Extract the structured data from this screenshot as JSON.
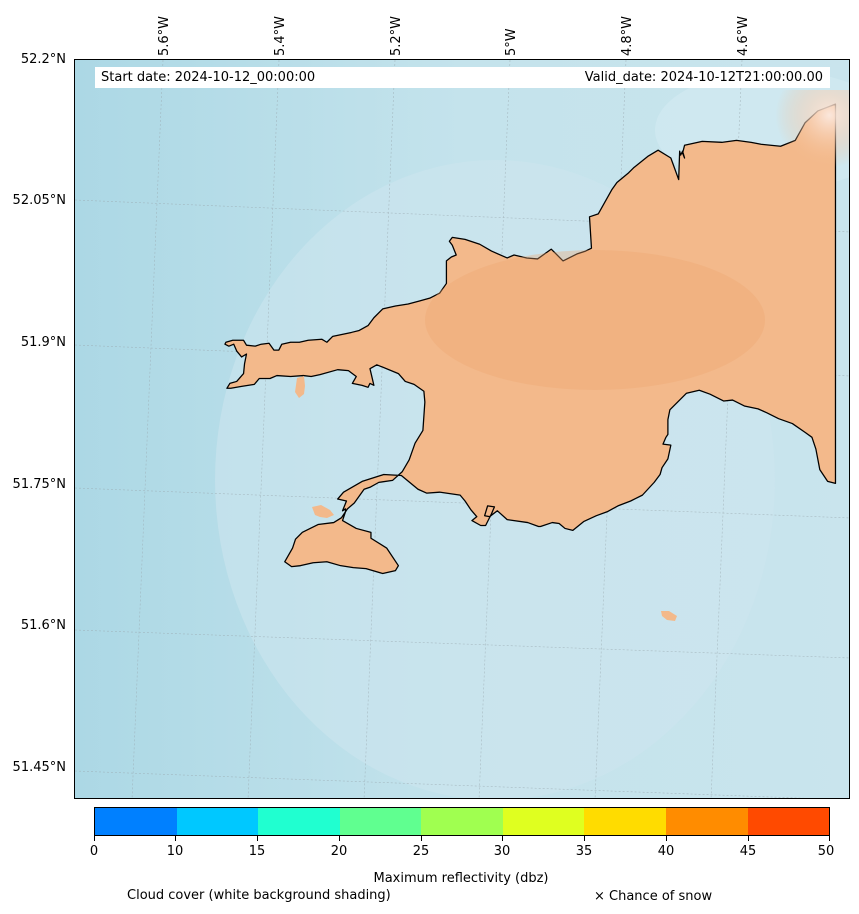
{
  "header": {
    "start_date": "Start date: 2024-10-12_00:00:00",
    "valid_date": "Valid_date: 2024-10-12T21:00:00.00"
  },
  "map": {
    "longitude_labels": [
      "5.6°W",
      "5.4°W",
      "5.2°W",
      "5°W",
      "4.8°W",
      "4.6°W"
    ],
    "latitude_labels": [
      "52.2°N",
      "52.05°N",
      "51.9°N",
      "51.75°N",
      "51.6°N",
      "51.45°N"
    ],
    "colors": {
      "sea_cloud": "#b9dce6",
      "land": "#f3b98b",
      "land_dark": "#efa670",
      "coastline": "#000000",
      "gridline": "#9aa9b0"
    },
    "region": "Pembrokeshire coastline"
  },
  "colorbar": {
    "title": "Maximum reflectivity (dbz)",
    "tick_labels": [
      "0",
      "10",
      "15",
      "20",
      "25",
      "30",
      "35",
      "40",
      "45",
      "50"
    ],
    "colors": [
      "#0080ff",
      "#00c8ff",
      "#20ffd0",
      "#60ff90",
      "#a0ff50",
      "#dfff20",
      "#ffdc00",
      "#ff8c00",
      "#ff4a00"
    ]
  },
  "legend": {
    "cloud_cover": "Cloud cover (white background shading)",
    "snow": "× Chance of snow"
  }
}
